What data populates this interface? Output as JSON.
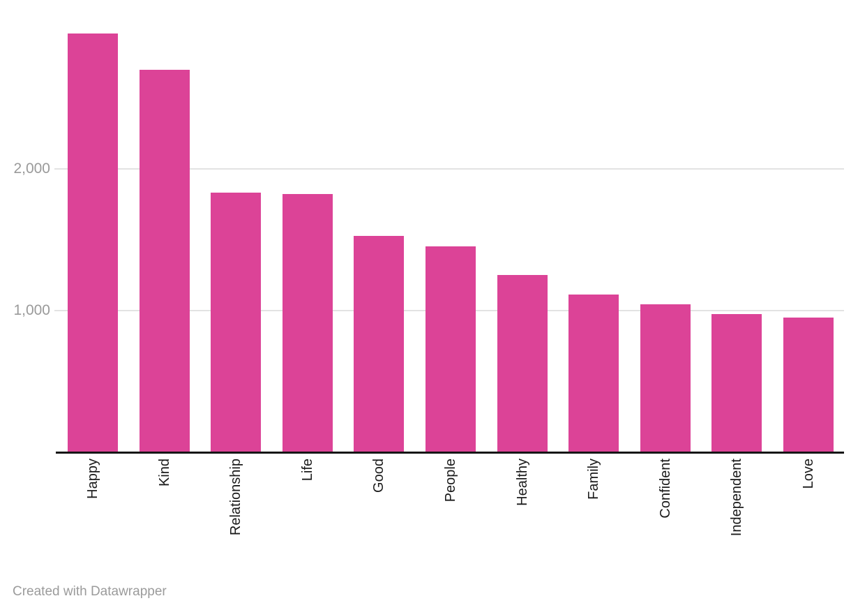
{
  "chart_data": {
    "type": "bar",
    "title": "",
    "xlabel": "",
    "ylabel": "",
    "categories": [
      "Happy",
      "Kind",
      "Relationship",
      "Life",
      "Good",
      "People",
      "Healthy",
      "Family",
      "Confident",
      "Independent",
      "Love"
    ],
    "values": [
      2960,
      2700,
      1830,
      1820,
      1525,
      1450,
      1250,
      1110,
      1040,
      975,
      950
    ],
    "ylim": [
      0,
      3195
    ],
    "yticks": [
      {
        "value": 1000,
        "label": "1,000"
      },
      {
        "value": 2000,
        "label": "2,000"
      }
    ],
    "grid": "horizontal gridlines on",
    "legend": "none",
    "x_label_rotation_degrees": 90,
    "bar_color": "#DC4397"
  },
  "footer": {
    "attribution": "Created with Datawrapper"
  },
  "colors": {
    "bar": "#DC4397",
    "axis_line": "#161616",
    "gridline": "#e3e3e3",
    "y_tick_label": "#9a9a9a",
    "x_tick_label": "#1a1a1a",
    "footer_text": "#9b9b9b",
    "background": "#ffffff"
  }
}
